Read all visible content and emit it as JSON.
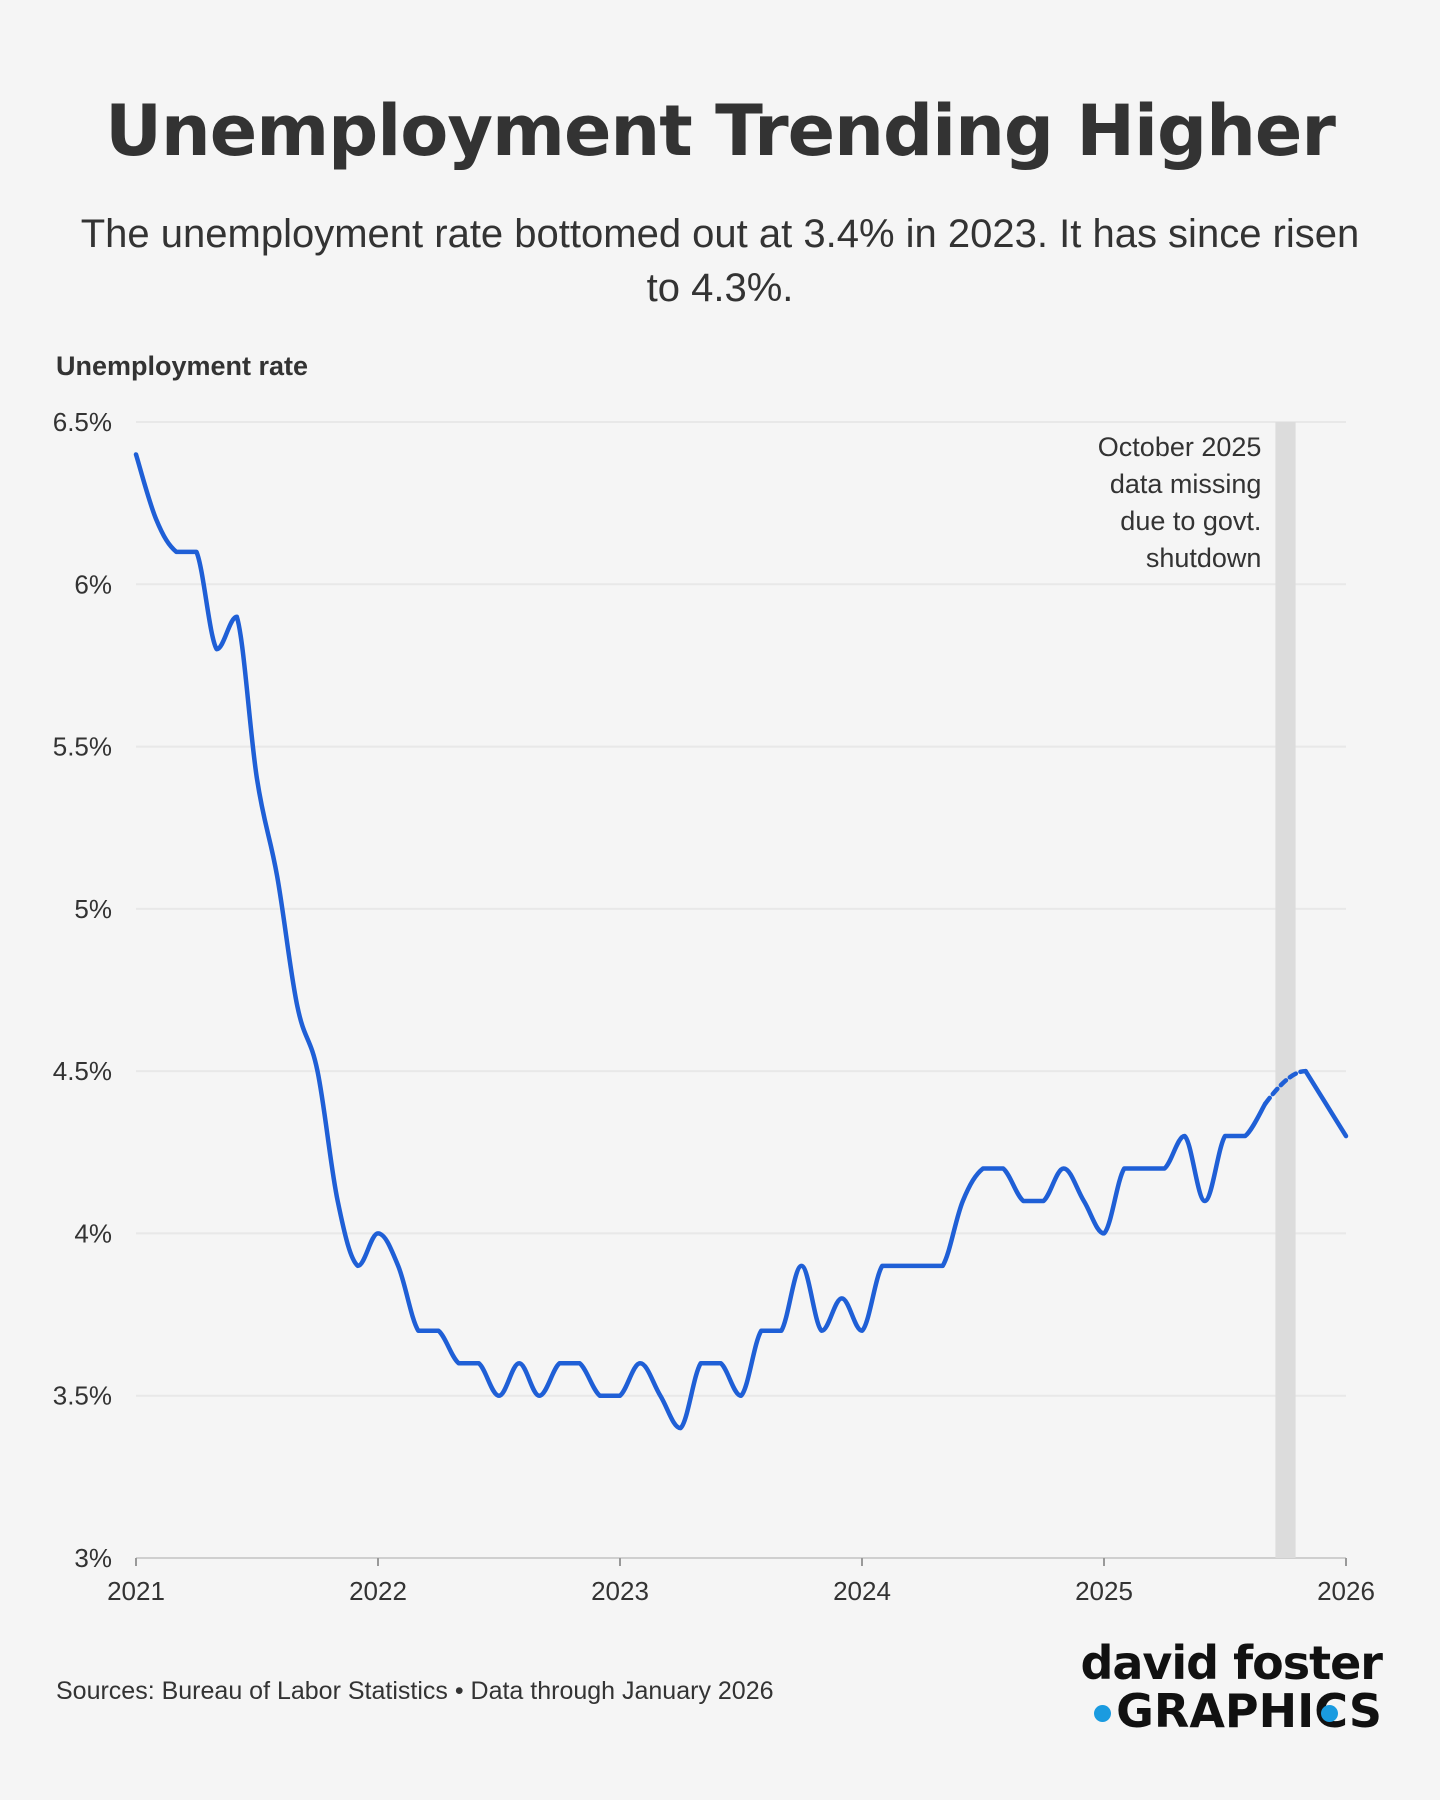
{
  "header": {
    "title": "Unemployment Trending Higher",
    "subtitle": "The unemployment rate bottomed out at 3.4% in 2023. It has since risen to 4.3%."
  },
  "footer": {
    "source": "Sources: Bureau of Labor Statistics • Data through January 2026",
    "logo_line1": "david foster",
    "logo_line2": "GRAPHICS"
  },
  "colors": {
    "line": "#1f5fd6",
    "grid": "#e8e8e8",
    "shade": "#dcdcdc",
    "logo_accent": "#1a9be0"
  },
  "chart_data": {
    "type": "line",
    "ylabel": "Unemployment rate",
    "ylim": [
      3,
      6.5
    ],
    "yticks": [
      3,
      3.5,
      4,
      4.5,
      5,
      5.5,
      6,
      6.5
    ],
    "ytick_labels": [
      "3%",
      "3.5%",
      "4%",
      "4.5%",
      "5%",
      "5.5%",
      "6%",
      "6.5%"
    ],
    "xlim": [
      "2021-01",
      "2026-01"
    ],
    "xticks": [
      "2021-01",
      "2022-01",
      "2023-01",
      "2024-01",
      "2025-01",
      "2026-01"
    ],
    "xtick_labels": [
      "2021",
      "2022",
      "2023",
      "2024",
      "2025",
      "2026"
    ],
    "grid": true,
    "series": [
      {
        "x": [
          "2021-01",
          "2021-02",
          "2021-03",
          "2021-04",
          "2021-05",
          "2021-06",
          "2021-07",
          "2021-08",
          "2021-09",
          "2021-10",
          "2021-11",
          "2021-12",
          "2022-01",
          "2022-02",
          "2022-03",
          "2022-04",
          "2022-05",
          "2022-06",
          "2022-07",
          "2022-08",
          "2022-09",
          "2022-10",
          "2022-11",
          "2022-12",
          "2023-01",
          "2023-02",
          "2023-03",
          "2023-04",
          "2023-05",
          "2023-06",
          "2023-07",
          "2023-08",
          "2023-09",
          "2023-10",
          "2023-11",
          "2023-12",
          "2024-01",
          "2024-02",
          "2024-03",
          "2024-04",
          "2024-05",
          "2024-06",
          "2024-07",
          "2024-08",
          "2024-09",
          "2024-10",
          "2024-11",
          "2024-12",
          "2025-01",
          "2025-02",
          "2025-03",
          "2025-04",
          "2025-05",
          "2025-06",
          "2025-07",
          "2025-08",
          "2025-09",
          "2025-11",
          "2025-12",
          "2026-01"
        ],
        "values": [
          6.4,
          6.2,
          6.1,
          6.1,
          5.8,
          5.9,
          5.4,
          5.1,
          4.7,
          4.5,
          4.1,
          3.9,
          4.0,
          3.9,
          3.7,
          3.7,
          3.6,
          3.6,
          3.5,
          3.6,
          3.5,
          3.6,
          3.6,
          3.5,
          3.5,
          3.6,
          3.5,
          3.4,
          3.6,
          3.6,
          3.5,
          3.7,
          3.7,
          3.9,
          3.7,
          3.8,
          3.7,
          3.9,
          3.9,
          3.9,
          3.9,
          4.1,
          4.2,
          4.2,
          4.1,
          4.1,
          4.2,
          4.1,
          4.0,
          4.2,
          4.2,
          4.2,
          4.3,
          4.1,
          4.3,
          4.3,
          4.4,
          4.5,
          4.4,
          4.3
        ]
      }
    ],
    "missing_period": {
      "month": "2025-10",
      "annotation": [
        "October 2025",
        "data missing",
        "due to govt.",
        "shutdown"
      ]
    }
  }
}
